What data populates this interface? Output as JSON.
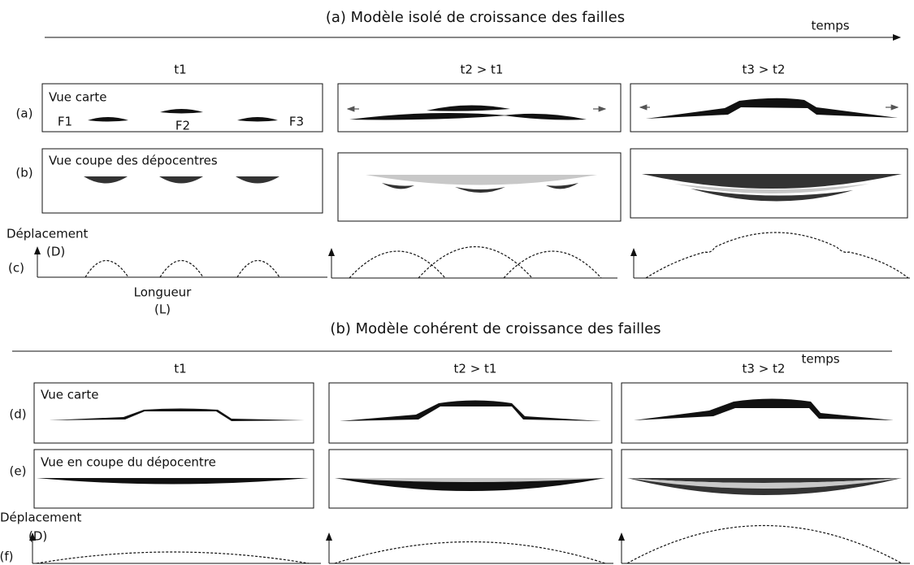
{
  "sections": [
    {
      "title": "(a) Modèle isolé de croissance des failles",
      "time_label": "temps",
      "columns": [
        "t1",
        "t2 > t1",
        "t3 > t2"
      ],
      "rows": [
        {
          "label": "(a)",
          "panel_title": "Vue carte",
          "faults": [
            "F1",
            "F2",
            "F3"
          ]
        },
        {
          "label": "(b)",
          "panel_title": "Vue coupe des dépocentres"
        },
        {
          "label": "(c)",
          "y_axis": "Déplacement",
          "y_unit": "(D)",
          "x_axis": "Longueur",
          "x_unit": "(L)"
        }
      ]
    },
    {
      "title": "(b) Modèle cohérent de croissance des failles",
      "time_label": "temps",
      "columns": [
        "t1",
        "t2 > t1",
        "t3 > t2"
      ],
      "rows": [
        {
          "label": "(d)",
          "panel_title": "Vue carte"
        },
        {
          "label": "(e)",
          "panel_title": "Vue en coupe du dépocentre"
        },
        {
          "label": "(f)",
          "y_axis": "Déplacement",
          "y_unit": "(D)"
        }
      ]
    }
  ]
}
